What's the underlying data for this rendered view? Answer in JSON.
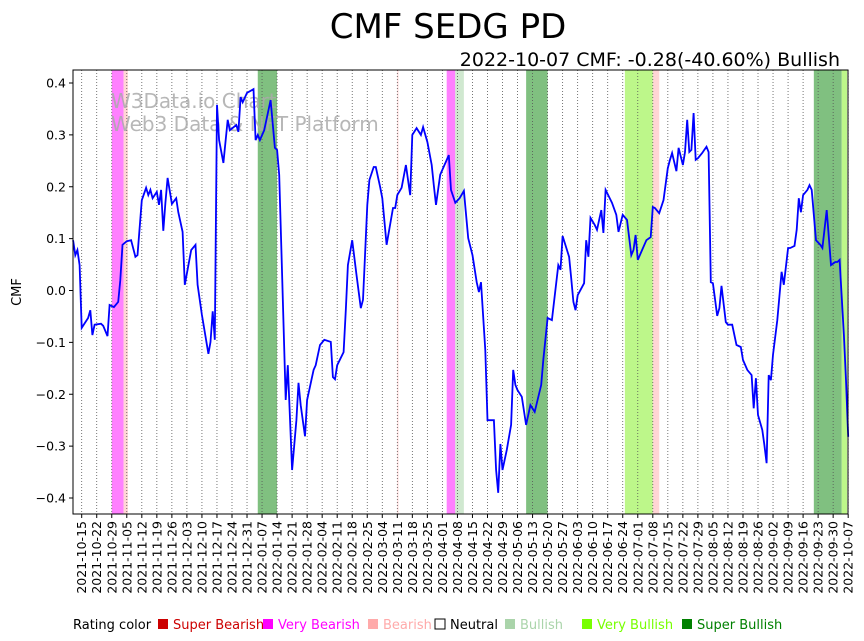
{
  "chart_data": {
    "type": "line",
    "title": "CMF SEDG PD",
    "subtitle": "2022-10-07 CMF: -0.28(-40.60%) Bullish",
    "ylabel": "CMF",
    "xlabel": "",
    "ylim": [
      -0.43,
      0.425
    ],
    "yticks": [
      -0.4,
      -0.3,
      -0.2,
      -0.1,
      0.0,
      0.1,
      0.2,
      0.3,
      0.4
    ],
    "ytick_labels": [
      "−0.4",
      "−0.3",
      "−0.2",
      "−0.1",
      "0.0",
      "0.1",
      "0.2",
      "0.3",
      "0.4"
    ],
    "start_date": "2021-10-15",
    "x_unit": "days since start_date",
    "xlim_days": [
      -4,
      357
    ],
    "xtick_labels": [
      "2021-10-15",
      "2021-10-22",
      "2021-10-29",
      "2021-11-05",
      "2021-11-12",
      "2021-11-19",
      "2021-11-26",
      "2021-12-03",
      "2021-12-10",
      "2021-12-17",
      "2021-12-24",
      "2021-12-31",
      "2022-01-07",
      "2022-01-14",
      "2022-01-21",
      "2022-01-28",
      "2022-02-04",
      "2022-02-11",
      "2022-02-18",
      "2022-02-25",
      "2022-03-04",
      "2022-03-11",
      "2022-03-18",
      "2022-03-25",
      "2022-04-01",
      "2022-04-08",
      "2022-04-15",
      "2022-04-22",
      "2022-04-29",
      "2022-05-06",
      "2022-05-13",
      "2022-05-20",
      "2022-05-27",
      "2022-06-03",
      "2022-06-10",
      "2022-06-17",
      "2022-06-24",
      "2022-07-01",
      "2022-07-08",
      "2022-07-15",
      "2022-07-22",
      "2022-07-29",
      "2022-08-05",
      "2022-08-12",
      "2022-08-19",
      "2022-08-26",
      "2022-09-02",
      "2022-09-09",
      "2022-09-16",
      "2022-09-23",
      "2022-09-30",
      "2022-10-07"
    ],
    "grid": "vertical dotted at weekly ticks",
    "series": [
      {
        "name": "CMF",
        "color": "#0000ff",
        "days": [
          -4,
          -3,
          -2,
          -1,
          0,
          3,
          4,
          5,
          6,
          9,
          10,
          12,
          13,
          15,
          17,
          18,
          19,
          21,
          23,
          25,
          26,
          28,
          30,
          31,
          32,
          33,
          35,
          36,
          37,
          38,
          39,
          40,
          42,
          44,
          45,
          47,
          48,
          51,
          53,
          54,
          56,
          59,
          60,
          61,
          62,
          63,
          64,
          66,
          68,
          69,
          72,
          73,
          74,
          75,
          77,
          80,
          81,
          82,
          83,
          85,
          87,
          88,
          90,
          91,
          92,
          93,
          95,
          96,
          98,
          100,
          101,
          102,
          104,
          105,
          108,
          109,
          111,
          113,
          116,
          117,
          118,
          119,
          122,
          123,
          124,
          126,
          128,
          130,
          131,
          133,
          134,
          136,
          137,
          139,
          140,
          142,
          145,
          146,
          147,
          149,
          151,
          153,
          154,
          156,
          158,
          159,
          161,
          163,
          164,
          165,
          167,
          171,
          172,
          174,
          176,
          178,
          180,
          182,
          184,
          185,
          186,
          188,
          189,
          192,
          193,
          194,
          195,
          196,
          198,
          200,
          201,
          202,
          203,
          205,
          207,
          209,
          211,
          214,
          215,
          217,
          219,
          222,
          223,
          224,
          227,
          228,
          229,
          230,
          231,
          234,
          235,
          236,
          237,
          239,
          240,
          242,
          243,
          244,
          247,
          249,
          250,
          252,
          254,
          256,
          257,
          258,
          259,
          261,
          263,
          265,
          266,
          267,
          269,
          271,
          273,
          274,
          275,
          277,
          278,
          280,
          281,
          282,
          283,
          284,
          285,
          286,
          287,
          289,
          290,
          291,
          292,
          293,
          294,
          295,
          296,
          297,
          298,
          300,
          301,
          303,
          305,
          307,
          308,
          310,
          312,
          313,
          314,
          315,
          317,
          318,
          319,
          320,
          321,
          322,
          324,
          326,
          327,
          329,
          330,
          332,
          333,
          334,
          335,
          336,
          338,
          339,
          340,
          342,
          344,
          345,
          347,
          349,
          351,
          352,
          353,
          355,
          356,
          357
        ],
        "values": [
          0.097,
          0.068,
          0.078,
          0.049,
          -0.072,
          -0.053,
          -0.038,
          -0.086,
          -0.066,
          -0.064,
          -0.068,
          -0.088,
          -0.028,
          -0.032,
          -0.022,
          0.02,
          0.088,
          0.095,
          0.097,
          0.065,
          0.068,
          0.174,
          0.198,
          0.184,
          0.194,
          0.178,
          0.19,
          0.165,
          0.194,
          0.115,
          0.169,
          0.217,
          0.167,
          0.178,
          0.151,
          0.113,
          0.011,
          0.078,
          0.088,
          0.011,
          -0.047,
          -0.122,
          -0.099,
          -0.04,
          -0.095,
          0.358,
          0.29,
          0.246,
          0.329,
          0.309,
          0.319,
          0.306,
          0.373,
          0.363,
          0.381,
          0.388,
          0.29,
          0.3,
          0.29,
          0.309,
          0.348,
          0.367,
          0.275,
          0.271,
          0.223,
          0.078,
          -0.211,
          -0.144,
          -0.346,
          -0.25,
          -0.178,
          -0.221,
          -0.281,
          -0.211,
          -0.153,
          -0.144,
          -0.105,
          -0.095,
          -0.099,
          -0.167,
          -0.171,
          -0.144,
          -0.119,
          -0.038,
          0.049,
          0.097,
          0.03,
          -0.034,
          -0.018,
          0.165,
          0.213,
          0.238,
          0.238,
          0.2,
          0.178,
          0.088,
          0.159,
          0.159,
          0.184,
          0.198,
          0.242,
          0.184,
          0.3,
          0.313,
          0.3,
          0.315,
          0.286,
          0.242,
          0.203,
          0.165,
          0.223,
          0.261,
          0.194,
          0.169,
          0.178,
          0.192,
          0.101,
          0.068,
          0.016,
          -0.003,
          0.016,
          -0.115,
          -0.25,
          -0.25,
          -0.346,
          -0.39,
          -0.296,
          -0.346,
          -0.307,
          -0.259,
          -0.153,
          -0.182,
          -0.192,
          -0.205,
          -0.259,
          -0.221,
          -0.234,
          -0.182,
          -0.134,
          -0.053,
          -0.057,
          0.049,
          0.04,
          0.105,
          0.065,
          0.024,
          -0.022,
          -0.038,
          -0.009,
          0.014,
          0.097,
          0.065,
          0.14,
          0.126,
          0.117,
          0.155,
          0.111,
          0.194,
          0.169,
          0.146,
          0.113,
          0.146,
          0.136,
          0.068,
          0.078,
          0.107,
          0.059,
          0.078,
          0.097,
          0.103,
          0.161,
          0.159,
          0.149,
          0.174,
          0.236,
          0.252,
          0.265,
          0.23,
          0.275,
          0.242,
          0.267,
          0.329,
          0.267,
          0.271,
          0.342,
          0.252,
          0.255,
          0.265,
          0.271,
          0.277,
          0.267,
          0.016,
          0.014,
          -0.018,
          -0.049,
          -0.034,
          0.009,
          -0.061,
          -0.066,
          -0.066,
          -0.105,
          -0.109,
          -0.134,
          -0.153,
          -0.163,
          -0.227,
          -0.169,
          -0.24,
          -0.269,
          -0.298,
          -0.333,
          -0.163,
          -0.173,
          -0.124,
          -0.057,
          0.036,
          0.011,
          0.082,
          0.082,
          0.086,
          0.117,
          0.178,
          0.151,
          0.184,
          0.194,
          0.203,
          0.194,
          0.097,
          0.088,
          0.082,
          0.155,
          0.049,
          0.055,
          0.055,
          0.059,
          -0.086,
          -0.173,
          -0.282
        ]
      }
    ],
    "rating_bands": [
      {
        "rating": "very_bearish",
        "start_day": 14,
        "end_day": 19.5
      },
      {
        "rating": "bearish",
        "start_day": 19.5,
        "end_day": 21.5
      },
      {
        "rating": "super_bullish",
        "start_day": 82,
        "end_day": 91
      },
      {
        "rating": "bearish",
        "start_day": 147,
        "end_day": 147.5
      },
      {
        "rating": "very_bearish",
        "start_day": 170,
        "end_day": 174
      },
      {
        "rating": "bullish",
        "start_day": 174,
        "end_day": 178
      },
      {
        "rating": "super_bullish",
        "start_day": 207,
        "end_day": 217
      },
      {
        "rating": "very_bullish",
        "start_day": 253,
        "end_day": 266
      },
      {
        "rating": "bearish",
        "start_day": 266,
        "end_day": 269
      },
      {
        "rating": "super_bullish",
        "start_day": 341,
        "end_day": 354
      },
      {
        "rating": "very_bullish",
        "start_day": 354,
        "end_day": 356.5
      }
    ],
    "legend": {
      "title": "Rating color",
      "placement": "bottom",
      "items": [
        {
          "key": "super_bearish",
          "label": "Super Bearish",
          "color": "#cc0000",
          "band": "#cc0000"
        },
        {
          "key": "very_bearish",
          "label": "Very Bearish",
          "color": "#ff00ff",
          "band": "#ff80ff"
        },
        {
          "key": "bearish",
          "label": "Bearish",
          "color": "#ffaaaa",
          "band": "#ffd5d5"
        },
        {
          "key": "neutral",
          "label": "Neutral",
          "color": "#000000",
          "band": "#ffffff",
          "hollow": true
        },
        {
          "key": "bullish",
          "label": "Bullish",
          "color": "#aad4aa",
          "band": "#d0e8d0"
        },
        {
          "key": "very_bullish",
          "label": "Very Bullish",
          "color": "#77ff00",
          "band": "#bdf78a"
        },
        {
          "key": "super_bullish",
          "label": "Super Bullish",
          "color": "#008000",
          "band": "#80c080"
        }
      ]
    },
    "watermark": [
      "W3Data.io Chart",
      "Web3 Data & NFT Platform"
    ]
  }
}
